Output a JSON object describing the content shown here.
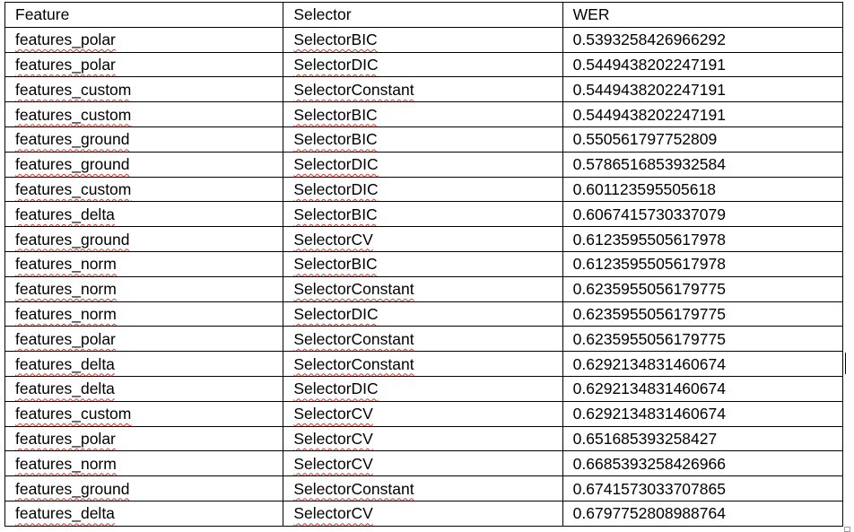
{
  "table": {
    "headers": [
      "Feature",
      "Selector",
      "WER"
    ],
    "rows": [
      [
        "features_polar",
        "SelectorBIC",
        "0.5393258426966292"
      ],
      [
        "features_polar",
        "SelectorDIC",
        "0.5449438202247191"
      ],
      [
        "features_custom",
        "SelectorConstant",
        "0.5449438202247191"
      ],
      [
        "features_custom",
        "SelectorBIC",
        "0.5449438202247191"
      ],
      [
        "features_ground",
        "SelectorBIC",
        "0.550561797752809"
      ],
      [
        "features_ground",
        "SelectorDIC",
        "0.5786516853932584"
      ],
      [
        "features_custom",
        "SelectorDIC",
        "0.601123595505618"
      ],
      [
        "features_delta",
        "SelectorBIC",
        "0.6067415730337079"
      ],
      [
        "features_ground",
        "SelectorCV",
        "0.6123595505617978"
      ],
      [
        "features_norm",
        "SelectorBIC",
        "0.6123595505617978"
      ],
      [
        "features_norm",
        "SelectorConstant",
        "0.6235955056179775"
      ],
      [
        "features_norm",
        "SelectorDIC",
        "0.6235955056179775"
      ],
      [
        "features_polar",
        "SelectorConstant",
        "0.6235955056179775"
      ],
      [
        "features_delta",
        "SelectorConstant",
        "0.6292134831460674"
      ],
      [
        "features_delta",
        "SelectorDIC",
        "0.6292134831460674"
      ],
      [
        "features_custom",
        "SelectorCV",
        "0.6292134831460674"
      ],
      [
        "features_polar",
        "SelectorCV",
        "0.651685393258427"
      ],
      [
        "features_norm",
        "SelectorCV",
        "0.6685393258426966"
      ],
      [
        "features_ground",
        "SelectorConstant",
        "0.6741573033707865"
      ],
      [
        "features_delta",
        "SelectorCV",
        "0.6797752808988764"
      ]
    ]
  },
  "colors": {
    "border": "#000000",
    "text": "#000000",
    "spellcheck_underline": "#e0362a",
    "background": "#ffffff"
  }
}
